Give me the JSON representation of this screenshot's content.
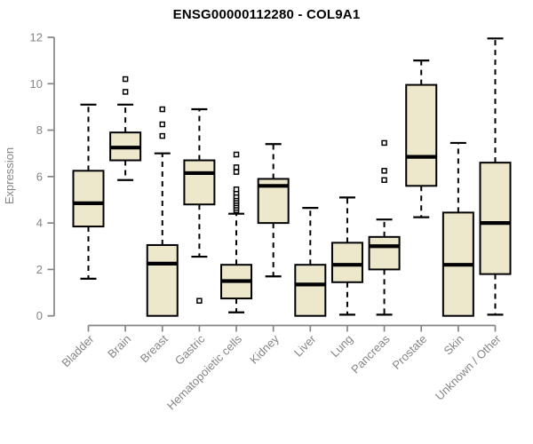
{
  "chart_data": {
    "type": "boxplot",
    "title": "ENSG00000112280 - COL9A1",
    "xlabel": "",
    "ylabel": "Expression",
    "ylim": [
      0,
      12
    ],
    "yticks": [
      0,
      2,
      4,
      6,
      8,
      10,
      12
    ],
    "grid": false,
    "legend": "none",
    "categories": [
      "Bladder",
      "Brain",
      "Breast",
      "Gastric",
      "Hematopoietic cells",
      "Kidney",
      "Liver",
      "Lung",
      "Pancreas",
      "Prostate",
      "Skin",
      "Unknown / Other"
    ],
    "series": [
      {
        "name": "Bladder",
        "whisker_low": 1.6,
        "q1": 3.85,
        "median": 4.85,
        "q3": 6.25,
        "whisker_high": 9.1,
        "outliers": []
      },
      {
        "name": "Brain",
        "whisker_low": 5.85,
        "q1": 6.7,
        "median": 7.25,
        "q3": 7.9,
        "whisker_high": 9.1,
        "outliers": [
          9.65,
          10.2
        ]
      },
      {
        "name": "Breast",
        "whisker_low": 0,
        "q1": 0,
        "median": 2.25,
        "q3": 3.05,
        "whisker_high": 7.0,
        "outliers": [
          7.75,
          8.25,
          8.9
        ]
      },
      {
        "name": "Gastric",
        "whisker_low": 2.55,
        "q1": 4.8,
        "median": 6.15,
        "q3": 6.7,
        "whisker_high": 8.9,
        "outliers": [
          0.65
        ]
      },
      {
        "name": "Hematopoietic cells",
        "whisker_low": 0.15,
        "q1": 0.75,
        "median": 1.5,
        "q3": 2.2,
        "whisker_high": 4.4,
        "outliers": [
          4.55,
          4.65,
          4.75,
          4.85,
          4.95,
          5.05,
          5.15,
          5.3,
          5.45,
          6.2,
          6.4,
          6.95
        ]
      },
      {
        "name": "Kidney",
        "whisker_low": 1.7,
        "q1": 4.0,
        "median": 5.6,
        "q3": 5.9,
        "whisker_high": 7.4,
        "outliers": []
      },
      {
        "name": "Liver",
        "whisker_low": 0,
        "q1": 0,
        "median": 1.35,
        "q3": 2.2,
        "whisker_high": 4.65,
        "outliers": []
      },
      {
        "name": "Lung",
        "whisker_low": 0.05,
        "q1": 1.45,
        "median": 2.2,
        "q3": 3.15,
        "whisker_high": 5.1,
        "outliers": []
      },
      {
        "name": "Pancreas",
        "whisker_low": 0.05,
        "q1": 2.0,
        "median": 3.0,
        "q3": 3.4,
        "whisker_high": 4.15,
        "outliers": [
          5.85,
          6.25,
          7.45
        ]
      },
      {
        "name": "Prostate",
        "whisker_low": 4.25,
        "q1": 5.6,
        "median": 6.85,
        "q3": 9.95,
        "whisker_high": 11.0,
        "outliers": []
      },
      {
        "name": "Skin",
        "whisker_low": 0,
        "q1": 0,
        "median": 2.2,
        "q3": 4.45,
        "whisker_high": 7.45,
        "outliers": []
      },
      {
        "name": "Unknown / Other",
        "whisker_low": 0.05,
        "q1": 1.8,
        "median": 4.0,
        "q3": 6.6,
        "whisker_high": 11.95,
        "outliers": []
      }
    ]
  },
  "colors": {
    "background": "#ffffff",
    "box_fill": "#ede8cc",
    "box_border": "#000000",
    "median": "#000000",
    "whisker": "#000000",
    "outlier_fill": "#ffffff",
    "outlier_border": "#000000",
    "axis": "#858585",
    "tick_label": "#858585",
    "title": "#000000"
  }
}
